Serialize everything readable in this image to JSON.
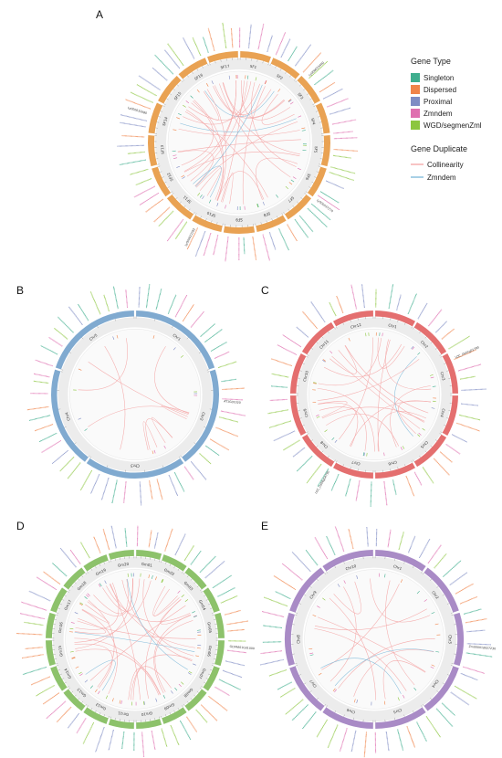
{
  "legend": {
    "gene_type_title": "Gene Type",
    "gene_types": [
      {
        "label": "Singleton",
        "color": "#3fae8e"
      },
      {
        "label": "Dispersed",
        "color": "#f0844a"
      },
      {
        "label": "Proximal",
        "color": "#7f8cc4"
      },
      {
        "label": "Zmndem",
        "color": "#df6fb0"
      },
      {
        "label": "WGD/segmenZml",
        "color": "#8cc63f"
      }
    ],
    "duplicate_title": "Gene Duplicate",
    "duplicates": [
      {
        "label": "Collinearity",
        "color": "#f4a3a3"
      },
      {
        "label": "Zmndem",
        "color": "#7ab7d8"
      }
    ]
  },
  "panels": [
    {
      "letter": "A",
      "ring_color": "#e9a253",
      "chromosomes": [
        "SF1",
        "SF2",
        "SF3",
        "SF4",
        "SF5",
        "SF6",
        "SF7",
        "SF8",
        "SF9",
        "SF10",
        "SF11",
        "SF12",
        "SF13",
        "SF14",
        "SF15",
        "SF16",
        "SF17"
      ],
      "sample_labels": [
        "Ly000033440",
        "Ly000037270",
        "Ly000022282",
        "Ly000032680"
      ]
    },
    {
      "letter": "B",
      "ring_color": "#80aad0",
      "chromosomes": [
        "Chr1",
        "Chr2",
        "Chr3",
        "Chr4",
        "Chr5"
      ],
      "sample_labels": [
        "AT1G01020"
      ]
    },
    {
      "letter": "C",
      "ring_color": "#e46f6f",
      "chromosomes": [
        "Chr1",
        "Chr2",
        "Chr3",
        "Chr4",
        "Chr5",
        "Chr6",
        "Chr7",
        "Chr8",
        "Chr9",
        "Chr10",
        "Chr11",
        "Chr12"
      ],
      "sample_labels": [
        "LOC_Os01g01790",
        "LOC_Os06g04790"
      ]
    },
    {
      "letter": "D",
      "ring_color": "#8dc26b",
      "chromosomes": [
        "Gm01",
        "Gm02",
        "Gm03",
        "Gm04",
        "Gm05",
        "Gm06",
        "Gm07",
        "Gm08",
        "Gm09",
        "Gm10",
        "Gm11",
        "Gm12",
        "Gm13",
        "Gm14",
        "Gm15",
        "Gm16",
        "Gm17",
        "Gm18",
        "Gm19",
        "Gm20"
      ],
      "sample_labels": [
        "GLYMA01G01000"
      ]
    },
    {
      "letter": "E",
      "ring_color": "#a98bc6",
      "chromosomes": [
        "Chr1",
        "Chr2",
        "Chr3",
        "Chr4",
        "Chr5",
        "Chr6",
        "Chr7",
        "Chr8",
        "Chr9",
        "Chr10"
      ],
      "sample_labels": [
        "Zm00001d027230"
      ]
    }
  ]
}
